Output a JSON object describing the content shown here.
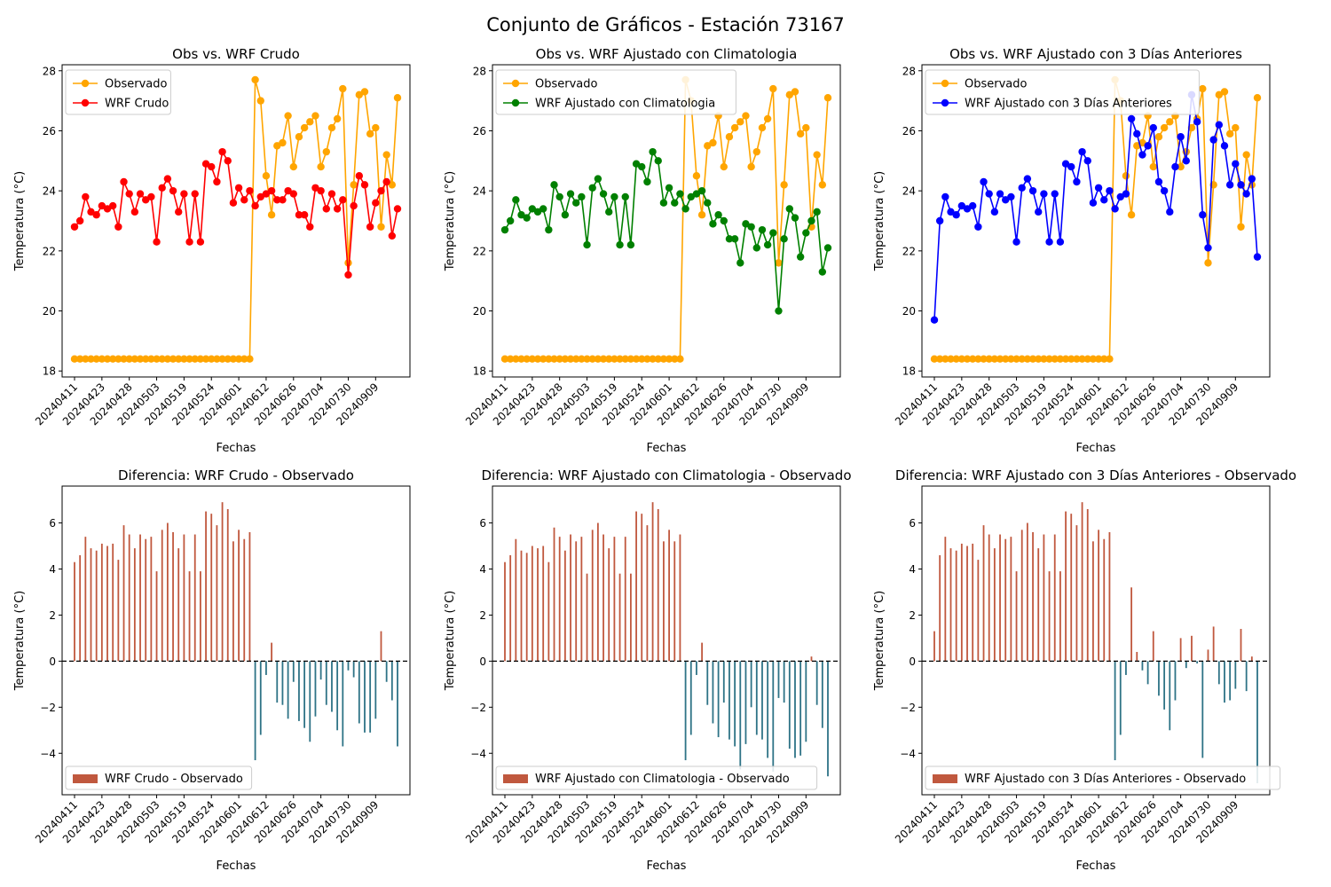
{
  "figure": {
    "suptitle": "Conjunto de Gráficos - Estación 73167",
    "colors": {
      "observado": "#ffa500",
      "crudo": "#ff0000",
      "clima": "#008000",
      "dias3": "#0000ff",
      "diff_pos": "#c0583e",
      "diff_neg": "#2e7386",
      "zero_line": "#000000"
    }
  },
  "chart_data": [
    {
      "type": "line",
      "title": "Obs vs. WRF Crudo",
      "xlabel": "Fechas",
      "ylabel": "Temperatura (°C)",
      "x_tick_labels": [
        "20240411",
        "20240423",
        "20240428",
        "20240503",
        "20240519",
        "20240524",
        "20240601",
        "20240612",
        "20240626",
        "20240704",
        "20240730",
        "20240909"
      ],
      "ylim": [
        17.8,
        28.2
      ],
      "yticks": [
        18,
        20,
        22,
        24,
        26,
        28
      ],
      "legend": "top-left",
      "series": [
        {
          "name": "Observado",
          "color_key": "observado",
          "values": [
            18.4,
            18.4,
            18.4,
            18.4,
            18.4,
            18.4,
            18.4,
            18.4,
            18.4,
            18.4,
            18.4,
            18.4,
            18.4,
            18.4,
            18.4,
            18.4,
            18.4,
            18.4,
            18.4,
            18.4,
            18.4,
            18.4,
            18.4,
            18.4,
            18.4,
            18.4,
            18.4,
            18.4,
            18.4,
            18.4,
            18.4,
            18.4,
            18.4,
            27.7,
            27.0,
            24.5,
            23.2,
            25.5,
            25.6,
            26.5,
            24.8,
            25.8,
            26.1,
            26.3,
            26.5,
            24.8,
            25.3,
            26.1,
            26.4,
            27.4,
            21.6,
            24.2,
            27.2,
            27.3,
            25.9,
            26.1,
            22.8,
            25.2,
            24.2,
            27.1
          ]
        },
        {
          "name": "WRF Crudo",
          "color_key": "crudo",
          "values": [
            22.8,
            23.0,
            23.8,
            23.3,
            23.2,
            23.5,
            23.4,
            23.5,
            22.8,
            24.3,
            23.9,
            23.3,
            23.9,
            23.7,
            23.8,
            22.3,
            24.1,
            24.4,
            24.0,
            23.3,
            23.9,
            22.3,
            23.9,
            22.3,
            24.9,
            24.8,
            24.3,
            25.3,
            25.0,
            23.6,
            24.1,
            23.7,
            24.0,
            23.5,
            23.8,
            23.9,
            24.0,
            23.7,
            23.7,
            24.0,
            23.9,
            23.2,
            23.2,
            22.8,
            24.1,
            24.0,
            23.4,
            23.9,
            23.4,
            23.7,
            21.2,
            23.5,
            24.5,
            24.2,
            22.8,
            23.6,
            24.0,
            24.3,
            22.5,
            23.4
          ]
        }
      ]
    },
    {
      "type": "line",
      "title": "Obs vs. WRF Ajustado con Climatologia",
      "xlabel": "Fechas",
      "ylabel": "Temperatura (°C)",
      "x_tick_labels": [
        "20240411",
        "20240423",
        "20240428",
        "20240503",
        "20240519",
        "20240524",
        "20240601",
        "20240612",
        "20240626",
        "20240704",
        "20240730",
        "20240909"
      ],
      "ylim": [
        17.8,
        28.2
      ],
      "yticks": [
        18,
        20,
        22,
        24,
        26,
        28
      ],
      "legend": "top-left",
      "series": [
        {
          "name": "Observado",
          "color_key": "observado",
          "values": [
            18.4,
            18.4,
            18.4,
            18.4,
            18.4,
            18.4,
            18.4,
            18.4,
            18.4,
            18.4,
            18.4,
            18.4,
            18.4,
            18.4,
            18.4,
            18.4,
            18.4,
            18.4,
            18.4,
            18.4,
            18.4,
            18.4,
            18.4,
            18.4,
            18.4,
            18.4,
            18.4,
            18.4,
            18.4,
            18.4,
            18.4,
            18.4,
            18.4,
            27.7,
            27.0,
            24.5,
            23.2,
            25.5,
            25.6,
            26.5,
            24.8,
            25.8,
            26.1,
            26.3,
            26.5,
            24.8,
            25.3,
            26.1,
            26.4,
            27.4,
            21.6,
            24.2,
            27.2,
            27.3,
            25.9,
            26.1,
            22.8,
            25.2,
            24.2,
            27.1
          ]
        },
        {
          "name": "WRF Ajustado con Climatologia",
          "color_key": "clima",
          "values": [
            22.7,
            23.0,
            23.7,
            23.2,
            23.1,
            23.4,
            23.3,
            23.4,
            22.7,
            24.2,
            23.8,
            23.2,
            23.9,
            23.6,
            23.8,
            22.2,
            24.1,
            24.4,
            23.9,
            23.3,
            23.8,
            22.2,
            23.8,
            22.2,
            24.9,
            24.8,
            24.3,
            25.3,
            25.0,
            23.6,
            24.1,
            23.6,
            23.9,
            23.4,
            23.8,
            23.9,
            24.0,
            23.6,
            22.9,
            23.2,
            23.0,
            22.4,
            22.4,
            21.6,
            22.9,
            22.8,
            22.1,
            22.7,
            22.2,
            22.6,
            20.0,
            22.4,
            23.4,
            23.1,
            21.8,
            22.6,
            23.0,
            23.3,
            21.3,
            22.1
          ]
        }
      ]
    },
    {
      "type": "line",
      "title": "Obs vs. WRF Ajustado con 3 Días Anteriores",
      "xlabel": "Fechas",
      "ylabel": "Temperatura (°C)",
      "x_tick_labels": [
        "20240411",
        "20240423",
        "20240428",
        "20240503",
        "20240519",
        "20240524",
        "20240601",
        "20240612",
        "20240626",
        "20240704",
        "20240730",
        "20240909"
      ],
      "ylim": [
        17.8,
        28.2
      ],
      "yticks": [
        18,
        20,
        22,
        24,
        26,
        28
      ],
      "legend": "top-left",
      "series": [
        {
          "name": "Observado",
          "color_key": "observado",
          "values": [
            18.4,
            18.4,
            18.4,
            18.4,
            18.4,
            18.4,
            18.4,
            18.4,
            18.4,
            18.4,
            18.4,
            18.4,
            18.4,
            18.4,
            18.4,
            18.4,
            18.4,
            18.4,
            18.4,
            18.4,
            18.4,
            18.4,
            18.4,
            18.4,
            18.4,
            18.4,
            18.4,
            18.4,
            18.4,
            18.4,
            18.4,
            18.4,
            18.4,
            27.7,
            27.0,
            24.5,
            23.2,
            25.5,
            25.6,
            26.5,
            24.8,
            25.8,
            26.1,
            26.3,
            26.5,
            24.8,
            25.3,
            26.1,
            26.4,
            27.4,
            21.6,
            24.2,
            27.2,
            27.3,
            25.9,
            26.1,
            22.8,
            25.2,
            24.2,
            27.1
          ]
        },
        {
          "name": "WRF Ajustado con 3 Días Anteriores",
          "color_key": "dias3",
          "values": [
            19.7,
            23.0,
            23.8,
            23.3,
            23.2,
            23.5,
            23.4,
            23.5,
            22.8,
            24.3,
            23.9,
            23.3,
            23.9,
            23.7,
            23.8,
            22.3,
            24.1,
            24.4,
            24.0,
            23.3,
            23.9,
            22.3,
            23.9,
            22.3,
            24.9,
            24.8,
            24.3,
            25.3,
            25.0,
            23.6,
            24.1,
            23.7,
            24.0,
            23.4,
            23.8,
            23.9,
            26.4,
            25.9,
            25.2,
            25.5,
            26.1,
            24.3,
            24.0,
            23.3,
            24.8,
            25.8,
            25.0,
            27.2,
            26.3,
            23.2,
            22.1,
            25.7,
            26.2,
            25.5,
            24.2,
            24.9,
            24.2,
            23.9,
            24.4,
            21.8
          ]
        }
      ]
    },
    {
      "type": "bar",
      "title": "Diferencia: WRF Crudo - Observado",
      "xlabel": "Fechas",
      "ylabel": "Temperatura (°C)",
      "x_tick_labels": [
        "20240411",
        "20240423",
        "20240428",
        "20240503",
        "20240519",
        "20240524",
        "20240601",
        "20240612",
        "20240626",
        "20240704",
        "20240730",
        "20240909"
      ],
      "ylim": [
        -5.8,
        7.6
      ],
      "yticks": [
        -4,
        -2,
        0,
        2,
        4,
        6
      ],
      "legend": "bottom-left",
      "series": [
        {
          "name": "WRF Crudo - Observado",
          "values": [
            4.3,
            4.6,
            5.4,
            4.9,
            4.8,
            5.1,
            5.0,
            5.1,
            4.4,
            5.9,
            5.5,
            4.9,
            5.5,
            5.3,
            5.4,
            3.9,
            5.7,
            6.0,
            5.6,
            4.9,
            5.5,
            3.9,
            5.5,
            3.9,
            6.5,
            6.4,
            5.9,
            6.9,
            6.6,
            5.2,
            5.7,
            5.3,
            5.6,
            -4.3,
            -3.2,
            -0.6,
            0.8,
            -1.8,
            -1.9,
            -2.5,
            -0.9,
            -2.6,
            -2.9,
            -3.5,
            -2.4,
            -0.8,
            -1.9,
            -2.2,
            -3.0,
            -3.7,
            -0.4,
            -0.7,
            -2.7,
            -3.1,
            -3.1,
            -2.5,
            1.3,
            -0.9,
            -1.7,
            -3.7
          ]
        }
      ]
    },
    {
      "type": "bar",
      "title": "Diferencia: WRF Ajustado con Climatologia - Observado",
      "xlabel": "Fechas",
      "ylabel": "Temperatura (°C)",
      "x_tick_labels": [
        "20240411",
        "20240423",
        "20240428",
        "20240503",
        "20240519",
        "20240524",
        "20240601",
        "20240612",
        "20240626",
        "20240704",
        "20240730",
        "20240909"
      ],
      "ylim": [
        -5.8,
        7.6
      ],
      "yticks": [
        -4,
        -2,
        0,
        2,
        4,
        6
      ],
      "legend": "bottom-left",
      "series": [
        {
          "name": "WRF Ajustado con Climatologia - Observado",
          "values": [
            4.3,
            4.6,
            5.3,
            4.8,
            4.7,
            5.0,
            4.9,
            5.0,
            4.3,
            5.8,
            5.4,
            4.8,
            5.5,
            5.2,
            5.4,
            3.8,
            5.7,
            6.0,
            5.5,
            4.9,
            5.4,
            3.8,
            5.4,
            3.8,
            6.5,
            6.4,
            5.9,
            6.9,
            6.6,
            5.2,
            5.7,
            5.2,
            5.5,
            -4.3,
            -3.2,
            -0.6,
            0.8,
            -1.9,
            -2.7,
            -3.3,
            -1.8,
            -3.4,
            -3.7,
            -4.7,
            -3.6,
            -2.0,
            -3.2,
            -3.4,
            -4.2,
            -4.8,
            -1.6,
            -1.8,
            -3.8,
            -4.2,
            -4.1,
            -3.5,
            0.2,
            -1.9,
            -2.9,
            -5.0
          ]
        }
      ]
    },
    {
      "type": "bar",
      "title": "Diferencia: WRF Ajustado con 3 Días Anteriores - Observado",
      "xlabel": "Fechas",
      "ylabel": "Temperatura (°C)",
      "x_tick_labels": [
        "20240411",
        "20240423",
        "20240428",
        "20240503",
        "20240519",
        "20240524",
        "20240601",
        "20240612",
        "20240626",
        "20240704",
        "20240730",
        "20240909"
      ],
      "ylim": [
        -5.8,
        7.6
      ],
      "yticks": [
        -4,
        -2,
        0,
        2,
        4,
        6
      ],
      "legend": "bottom-left",
      "series": [
        {
          "name": "WRF Ajustado con 3 Días Anteriores - Observado",
          "values": [
            1.3,
            4.6,
            5.4,
            4.9,
            4.8,
            5.1,
            5.0,
            5.1,
            4.4,
            5.9,
            5.5,
            4.9,
            5.5,
            5.3,
            5.4,
            3.9,
            5.7,
            6.0,
            5.6,
            4.9,
            5.5,
            3.9,
            5.5,
            3.9,
            6.5,
            6.4,
            5.9,
            6.9,
            6.6,
            5.2,
            5.7,
            5.3,
            5.6,
            -4.3,
            -3.2,
            -0.6,
            3.2,
            0.4,
            -0.4,
            -1.0,
            1.3,
            -1.5,
            -2.1,
            -3.0,
            -1.7,
            1.0,
            -0.3,
            1.1,
            -0.1,
            -4.2,
            0.5,
            1.5,
            -1.0,
            -1.8,
            -1.7,
            -1.2,
            1.4,
            -1.3,
            0.2,
            -5.3
          ]
        }
      ]
    }
  ]
}
